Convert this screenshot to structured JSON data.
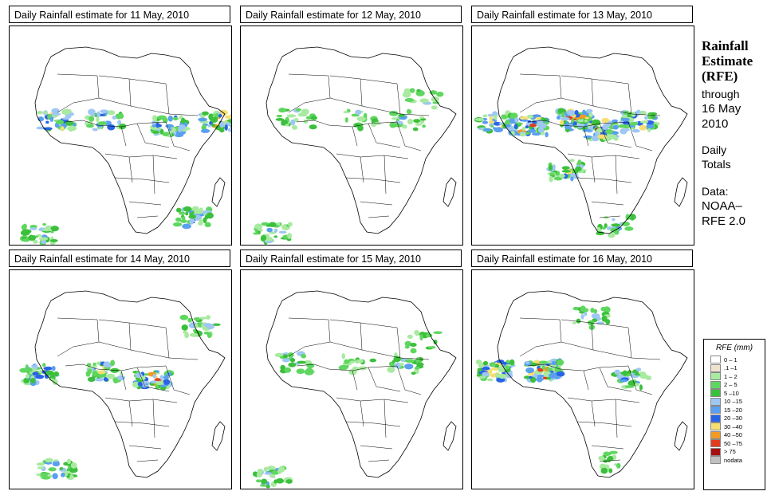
{
  "panels": [
    {
      "title": "Daily Rainfall estimate for  11 May, 2010",
      "rain_pattern": "moderate-west-central"
    },
    {
      "title": "Daily Rainfall estimate for  12 May, 2010",
      "rain_pattern": "light-scattered"
    },
    {
      "title": "Daily Rainfall estimate for  13 May, 2010",
      "rain_pattern": "heavy-west-africa"
    },
    {
      "title": "Daily Rainfall estimate for  14 May, 2010",
      "rain_pattern": "moderate-central"
    },
    {
      "title": "Daily Rainfall estimate for  15 May, 2010",
      "rain_pattern": "light-scattered"
    },
    {
      "title": "Daily Rainfall estimate for  16 May, 2010",
      "rain_pattern": "heavy-nigeria"
    }
  ],
  "sidebar": {
    "heading_line1": "Rainfall",
    "heading_line2": "Estimate",
    "heading_line3": "(RFE)",
    "through": "through",
    "date_line1": "16 May",
    "date_line2": "2010",
    "daily_line1": "Daily",
    "daily_line2": "Totals",
    "data_line1": "Data:",
    "data_line2": "NOAA–",
    "data_line3": "RFE 2.0"
  },
  "legend": {
    "title": "RFE (mm)",
    "items": [
      {
        "label": "0 – 1",
        "color": "#ffffff"
      },
      {
        "label": ".1 –1",
        "color": "#efe2cf"
      },
      {
        "label": "1 – 2",
        "color": "#a8eaa0"
      },
      {
        "label": "2 – 5",
        "color": "#5fd65f"
      },
      {
        "label": "5 –10",
        "color": "#3cc03c"
      },
      {
        "label": "10 –15",
        "color": "#9ec8f2"
      },
      {
        "label": "15 –20",
        "color": "#5a9ff0"
      },
      {
        "label": "20 –30",
        "color": "#2a64e6"
      },
      {
        "label": "30 –40",
        "color": "#f6df72"
      },
      {
        "label": "40 –50",
        "color": "#f29a22"
      },
      {
        "label": "50 –75",
        "color": "#e33b1f"
      },
      {
        "label": "> 75",
        "color": "#a60f0f"
      },
      {
        "label": "nodata",
        "color": "#c0c0c0"
      }
    ]
  }
}
